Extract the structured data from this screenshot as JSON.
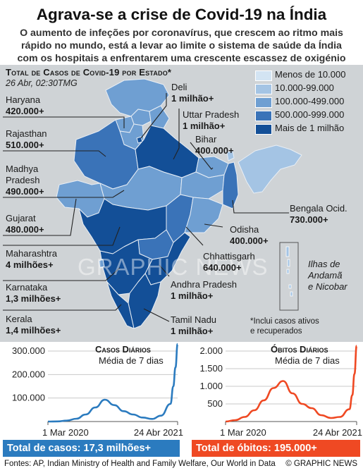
{
  "title": "Agrava-se a crise de Covid-19 na Índia",
  "subtitle": [
    "O aumento de infeções por coronavírus, que crescem ao ritmo mais",
    "rápido no mundo, está a levar ao limite o sistema de saúde da Índia",
    "com os hospitais a enfrentarem uma crescente escassez de oxigénio"
  ],
  "map": {
    "title": "Total de Casos de Covid-19 por Estado*",
    "date": "26 Abr, 02:30TMG",
    "legend": [
      {
        "label": "Menos de 10.000",
        "color": "#d3e4f3"
      },
      {
        "label": "10.000-99.000",
        "color": "#a4c4e4"
      },
      {
        "label": "100.000-499.000",
        "color": "#6f9fd2"
      },
      {
        "label": "500.000-999.000",
        "color": "#3a73b8"
      },
      {
        "label": "Mais de 1 milhão",
        "color": "#134f97"
      }
    ],
    "states": {
      "haryana": {
        "name": "Haryana",
        "value": "420.000+"
      },
      "rajasthan": {
        "name": "Rajasthan",
        "value": "510.000+"
      },
      "madhya_pradesh": {
        "name": "Madhya Pradesh",
        "name_lines": [
          "Madhya",
          "Pradesh"
        ],
        "value": "490.000+"
      },
      "gujarat": {
        "name": "Gujarat",
        "value": "480.000+"
      },
      "maharashtra": {
        "name": "Maharashtra",
        "value": "4 milhões+"
      },
      "karnataka": {
        "name": "Karnataka",
        "value": "1,3 milhões+"
      },
      "kerala": {
        "name": "Kerala",
        "value": "1,4 milhões+"
      },
      "deli": {
        "name": "Deli",
        "value": "1 milhão+"
      },
      "uttar_pradesh": {
        "name": "Uttar Pradesh",
        "value": "1 milhão+"
      },
      "bihar": {
        "name": "Bihar",
        "value": "400.000+"
      },
      "bengala": {
        "name": "Bengala Ocid.",
        "value": "730.000+"
      },
      "odisha": {
        "name": "Odisha",
        "value": "400.000+"
      },
      "chhattisgarh": {
        "name": "Chhattisgarh",
        "value": "640.000+"
      },
      "andhra_pradesh": {
        "name": "Andhra Pradesh",
        "value": "1 milhão+"
      },
      "tamil_nadu": {
        "name": "Tamil Nadu",
        "value": "1 milhão+"
      }
    },
    "andaman": [
      "Ilhas de",
      "Andamã",
      "e Nicobar"
    ],
    "note": [
      "*Inclui casos ativos",
      "e recuperados"
    ],
    "watermark": "GRAPHIC NEWS"
  },
  "chart_data": [
    {
      "type": "line",
      "title": "Casos Diários",
      "subtitle": "Média de 7 dias",
      "color": "#2b7bbf",
      "ylim": [
        0,
        300000
      ],
      "yticks": [
        {
          "v": 0,
          "label": ""
        },
        {
          "v": 100000,
          "label": "100.000"
        },
        {
          "v": 200000,
          "label": "200.000"
        },
        {
          "v": 300000,
          "label": "300.000"
        }
      ],
      "xlabels": [
        "1 Mar 2020",
        "24 Abr 2021"
      ],
      "x": [
        "2020-03",
        "2020-04",
        "2020-05",
        "2020-06",
        "2020-07",
        "2020-08",
        "2020-09",
        "2020-10",
        "2020-11",
        "2020-12",
        "2021-01",
        "2021-02",
        "2021-03",
        "2021-04-01",
        "2021-04-10",
        "2021-04-17",
        "2021-04-24"
      ],
      "values": [
        0,
        500,
        4000,
        12000,
        30000,
        60000,
        93000,
        70000,
        44000,
        30000,
        17000,
        11000,
        25000,
        75000,
        150000,
        230000,
        330000
      ]
    },
    {
      "type": "line",
      "title": "Óbitos Diários",
      "subtitle": "Média de 7 dias",
      "color": "#ef4923",
      "ylim": [
        0,
        2000
      ],
      "yticks": [
        {
          "v": 0,
          "label": ""
        },
        {
          "v": 500,
          "label": "500"
        },
        {
          "v": 1000,
          "label": "1.000"
        },
        {
          "v": 1500,
          "label": "1.500"
        },
        {
          "v": 2000,
          "label": "2.000"
        }
      ],
      "xlabels": [
        "1 Mar 2020",
        "24 Abr 2021"
      ],
      "x": [
        "2020-03",
        "2020-04",
        "2020-05",
        "2020-06",
        "2020-07",
        "2020-08",
        "2020-09",
        "2020-10",
        "2020-11",
        "2020-12",
        "2021-01",
        "2021-02",
        "2021-03",
        "2021-04-01",
        "2021-04-10",
        "2021-04-17",
        "2021-04-24"
      ],
      "values": [
        0,
        40,
        130,
        320,
        600,
        950,
        1150,
        800,
        500,
        380,
        180,
        100,
        130,
        350,
        750,
        1350,
        2150
      ]
    }
  ],
  "totals": {
    "cases": "Total de casos: 17,3 milhões+",
    "deaths": "Total de óbitos: 195.000+",
    "cases_color": "#2b7bbf",
    "deaths_color": "#ef4923"
  },
  "footer": {
    "sources": "Fontes: AP, Indian Ministry of Health and Family Welfare, Our World in Data",
    "brand": "© GRAPHIC NEWS"
  }
}
